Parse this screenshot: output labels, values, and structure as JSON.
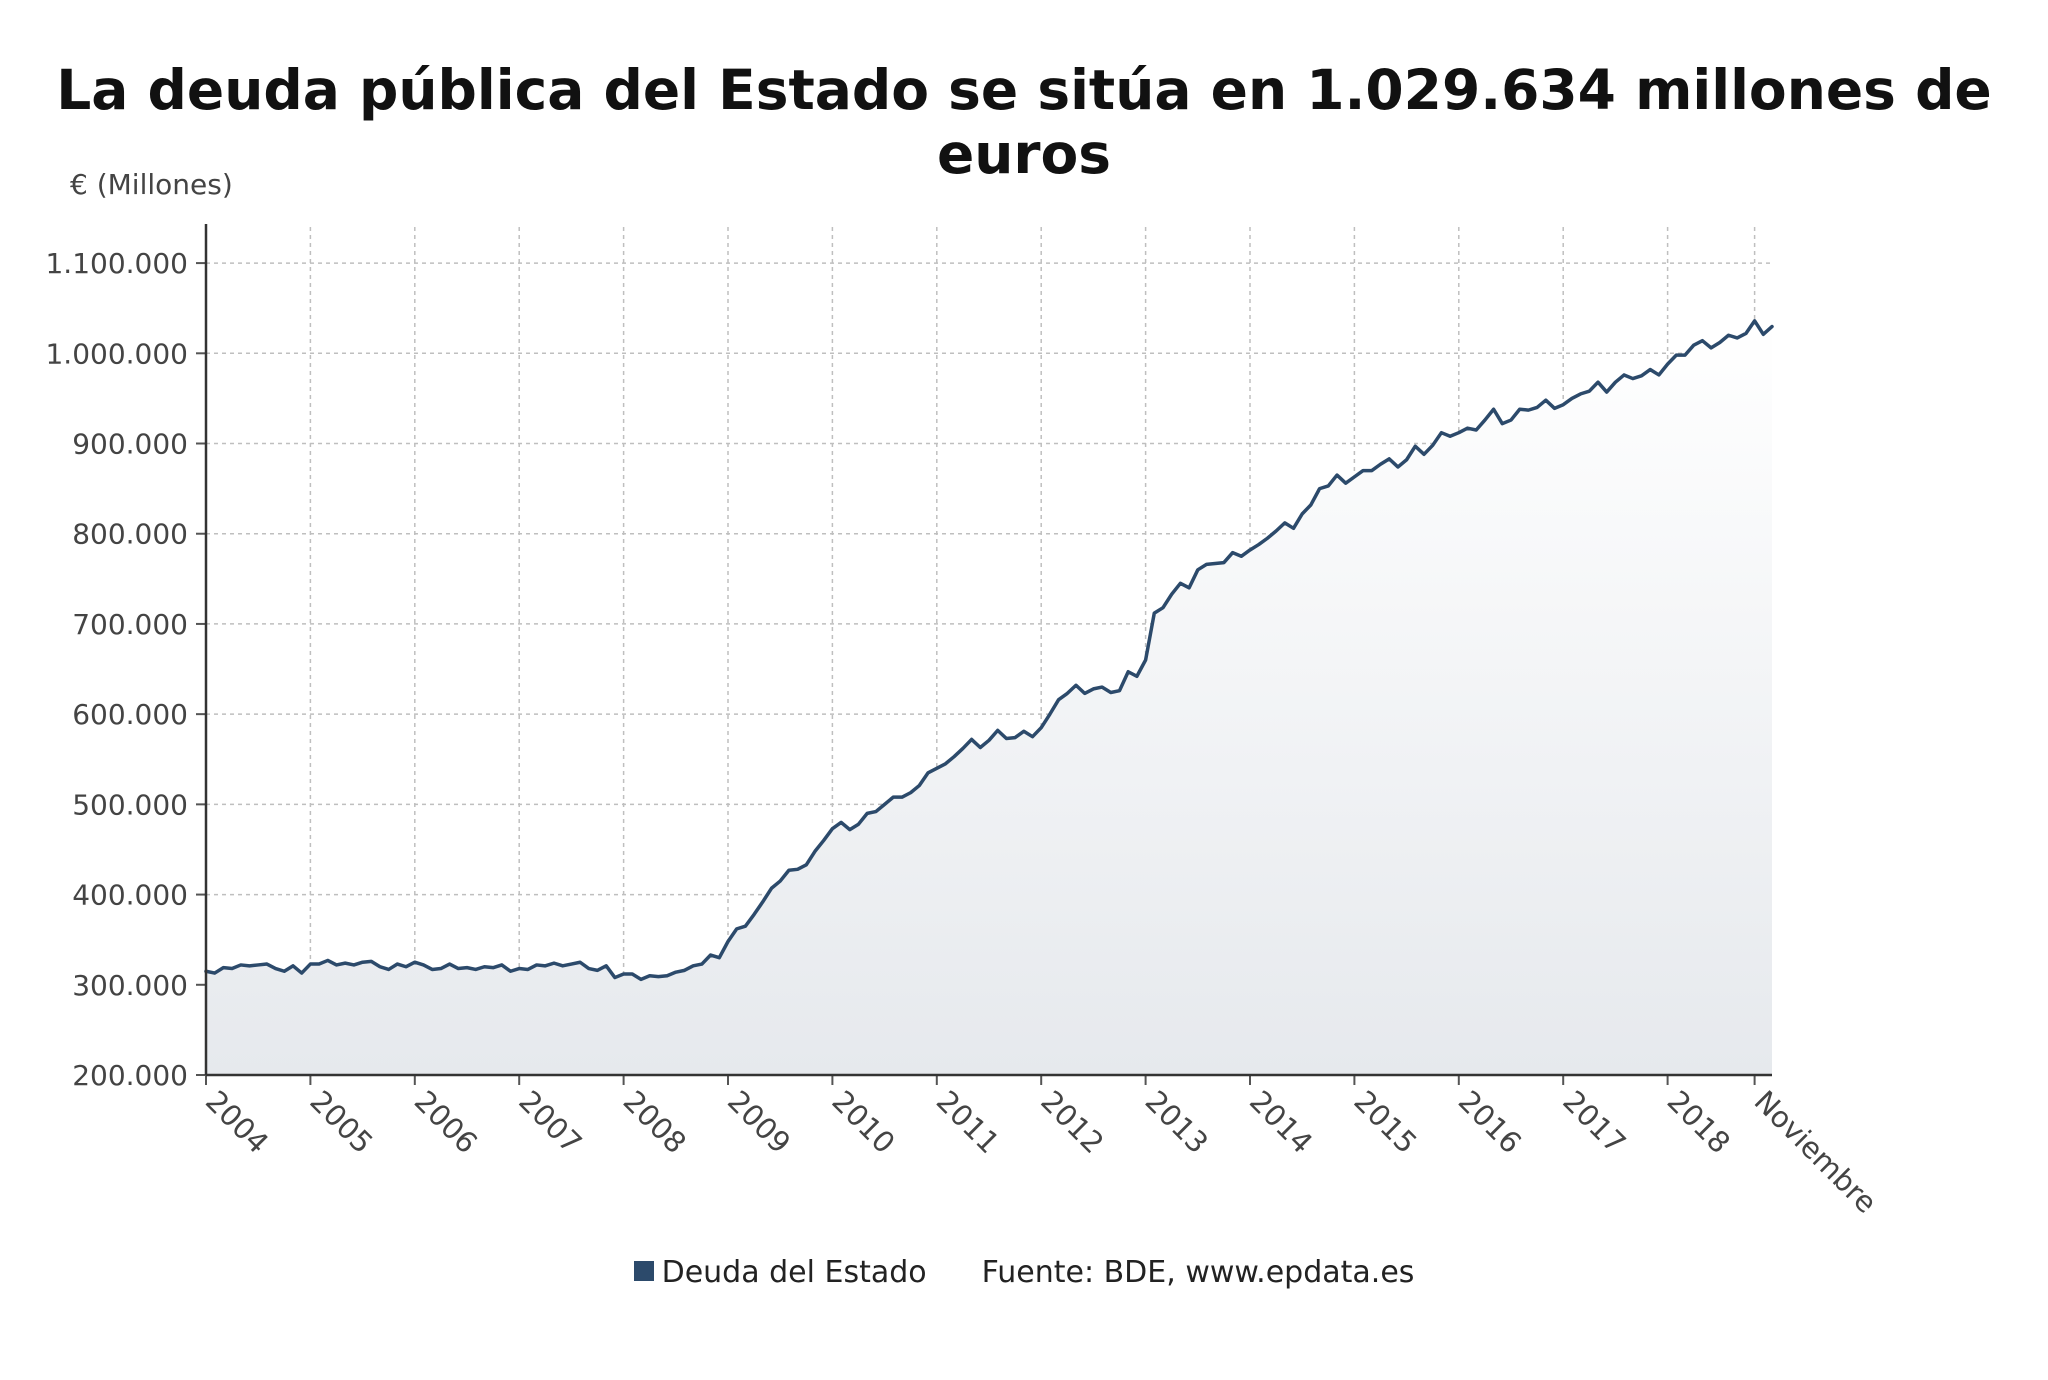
{
  "title": "La deuda pública del Estado se sitúa en 1.029.634 millones de euros",
  "unit_label": "€ (Millones)",
  "legend": {
    "series_label": "Deuda del Estado",
    "source": "Fuente: BDE, www.epdata.es"
  },
  "colors": {
    "line": "#2c4a6b",
    "grid": "#bfbfbf",
    "area_top": "#ffffff",
    "area_bottom": "#e6e9ed"
  },
  "chart_data": {
    "type": "area",
    "title": "La deuda pública del Estado se sitúa en 1.029.634 millones de euros",
    "ylabel": "€ (Millones)",
    "xlabel": "",
    "ylim": [
      200000,
      1140000
    ],
    "yticks": [
      200000,
      300000,
      400000,
      500000,
      600000,
      700000,
      800000,
      900000,
      1000000,
      1100000
    ],
    "ytick_labels": [
      "200.000",
      "300.000",
      "400.000",
      "500.000",
      "600.000",
      "700.000",
      "800.000",
      "900.000",
      "1.000.000",
      "1.100.000"
    ],
    "xticks": [
      {
        "label": "2004",
        "month": 0
      },
      {
        "label": "2005",
        "month": 12
      },
      {
        "label": "2006",
        "month": 24
      },
      {
        "label": "2007",
        "month": 36
      },
      {
        "label": "2008",
        "month": 48
      },
      {
        "label": "2009",
        "month": 60
      },
      {
        "label": "2010",
        "month": 72
      },
      {
        "label": "2011",
        "month": 84
      },
      {
        "label": "2012",
        "month": 96
      },
      {
        "label": "2013",
        "month": 108
      },
      {
        "label": "2014",
        "month": 120
      },
      {
        "label": "2015",
        "month": 132
      },
      {
        "label": "2016",
        "month": 144
      },
      {
        "label": "2017",
        "month": 156
      },
      {
        "label": "2018",
        "month": 168
      },
      {
        "label": "Noviembre",
        "month": 178
      }
    ],
    "grid": true,
    "series": [
      {
        "name": "Deuda del Estado",
        "start": "2004-01",
        "end": "2018-11",
        "values": [
          315000,
          313000,
          319000,
          318000,
          322000,
          321000,
          322000,
          323000,
          318000,
          315000,
          321000,
          313000,
          323000,
          323000,
          327000,
          322000,
          324000,
          322000,
          325000,
          326000,
          320000,
          317000,
          323000,
          320000,
          325000,
          322000,
          317000,
          318000,
          323000,
          318000,
          319000,
          317000,
          320000,
          319000,
          322000,
          315000,
          318000,
          317000,
          322000,
          321000,
          324000,
          321000,
          323000,
          325000,
          318000,
          316000,
          321000,
          308000,
          312000,
          312000,
          306000,
          310000,
          309000,
          310000,
          314000,
          316000,
          321000,
          323000,
          333000,
          330000,
          348000,
          362000,
          365000,
          378000,
          392000,
          407000,
          415000,
          427000,
          428000,
          433000,
          448000,
          460000,
          473000,
          480000,
          472000,
          478000,
          490000,
          492000,
          500000,
          508000,
          508000,
          513000,
          521000,
          535000,
          540000,
          545000,
          553000,
          562000,
          572000,
          563000,
          571000,
          582000,
          573000,
          574000,
          581000,
          575000,
          585000,
          600000,
          616000,
          623000,
          632000,
          623000,
          628000,
          630000,
          624000,
          626000,
          647000,
          642000,
          660000,
          712000,
          718000,
          733000,
          745000,
          740000,
          760000,
          766000,
          767000,
          768000,
          779000,
          775000,
          782000,
          788000,
          795000,
          803000,
          812000,
          806000,
          822000,
          832000,
          850000,
          853000,
          865000,
          856000,
          863000,
          870000,
          870000,
          877000,
          883000,
          874000,
          882000,
          897000,
          888000,
          898000,
          912000,
          908000,
          912000,
          917000,
          915000,
          926000,
          938000,
          922000,
          926000,
          938000,
          937000,
          940000,
          948000,
          939000,
          943000,
          950000,
          955000,
          958000,
          968000,
          957000,
          968000,
          976000,
          972000,
          975000,
          982000,
          976000,
          988000,
          998000,
          998000,
          1009000,
          1014000,
          1006000,
          1012000,
          1020000,
          1017000,
          1022000,
          1036000,
          1021000,
          1029634
        ]
      }
    ]
  }
}
